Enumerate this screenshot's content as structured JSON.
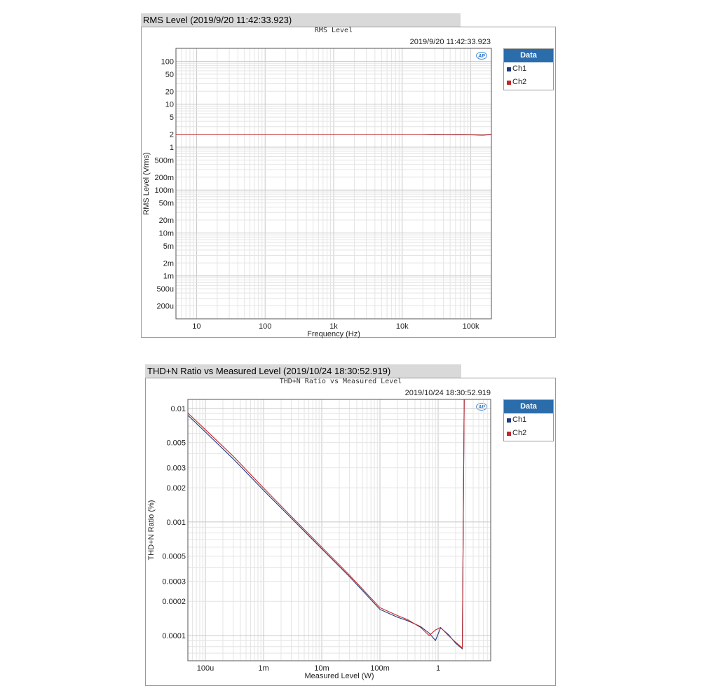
{
  "panels": [
    {
      "id": "rms",
      "window_title": "RMS Level (2019/9/20 11:42:33.923)",
      "chart_title": "RMS Level",
      "timestamp": "2019/9/20 11:42:33.923",
      "logo": "AP",
      "legend": {
        "header": "Data",
        "items": [
          {
            "label": "Ch1",
            "color": "#1f3a7a"
          },
          {
            "label": "Ch2",
            "color": "#c0282d"
          }
        ]
      }
    },
    {
      "id": "thd",
      "window_title": "THD+N Ratio vs Measured Level (2019/10/24 18:30:52.919)",
      "chart_title": "THD+N Ratio vs Measured Level",
      "timestamp": "2019/10/24 18:30:52.919",
      "logo": "AP",
      "legend": {
        "header": "Data",
        "items": [
          {
            "label": "Ch1",
            "color": "#1f3a7a"
          },
          {
            "label": "Ch2",
            "color": "#c0282d"
          }
        ]
      }
    }
  ],
  "chart_data": [
    {
      "type": "line",
      "title": "RMS Level",
      "xlabel": "Frequency (Hz)",
      "ylabel": "RMS Level (Vrms)",
      "xscale": "log",
      "yscale": "log",
      "xlim": [
        5,
        200000
      ],
      "ylim": [
        0.0001,
        200
      ],
      "grid": true,
      "legend_position": "right",
      "x_ticks": [
        {
          "v": 10,
          "label": "10"
        },
        {
          "v": 100,
          "label": "100"
        },
        {
          "v": 1000,
          "label": "1k"
        },
        {
          "v": 10000,
          "label": "10k"
        },
        {
          "v": 100000,
          "label": "100k"
        }
      ],
      "y_ticks": [
        {
          "v": 100,
          "label": "100"
        },
        {
          "v": 50,
          "label": "50"
        },
        {
          "v": 20,
          "label": "20"
        },
        {
          "v": 10,
          "label": "10"
        },
        {
          "v": 5,
          "label": "5"
        },
        {
          "v": 2,
          "label": "2"
        },
        {
          "v": 1,
          "label": "1"
        },
        {
          "v": 0.5,
          "label": "500m"
        },
        {
          "v": 0.2,
          "label": "200m"
        },
        {
          "v": 0.1,
          "label": "100m"
        },
        {
          "v": 0.05,
          "label": "50m"
        },
        {
          "v": 0.02,
          "label": "20m"
        },
        {
          "v": 0.01,
          "label": "10m"
        },
        {
          "v": 0.005,
          "label": "5m"
        },
        {
          "v": 0.002,
          "label": "2m"
        },
        {
          "v": 0.001,
          "label": "1m"
        },
        {
          "v": 0.0005,
          "label": "500u"
        },
        {
          "v": 0.0002,
          "label": "200u"
        }
      ],
      "series": [
        {
          "name": "Ch1",
          "color": "#1f3a7a",
          "x": [
            5,
            10,
            20,
            50,
            100,
            200,
            500,
            1000,
            2000,
            5000,
            10000,
            20000,
            30000,
            50000,
            100000,
            150000,
            200000
          ],
          "y": [
            2,
            2,
            2,
            2,
            2,
            2,
            2,
            2,
            2,
            2,
            2,
            2,
            1.98,
            1.95,
            1.93,
            1.9,
            1.96
          ]
        },
        {
          "name": "Ch2",
          "color": "#c0282d",
          "x": [
            5,
            10,
            20,
            50,
            100,
            200,
            500,
            1000,
            2000,
            5000,
            10000,
            20000,
            30000,
            50000,
            100000,
            150000,
            200000
          ],
          "y": [
            2,
            2,
            2,
            2,
            2,
            2,
            2,
            2,
            2,
            2,
            2,
            2,
            1.99,
            1.96,
            1.94,
            1.91,
            1.97
          ]
        }
      ]
    },
    {
      "type": "line",
      "title": "THD+N Ratio vs Measured Level",
      "xlabel": "Measured Level (W)",
      "ylabel": "THD+N Ratio (%)",
      "xscale": "log",
      "yscale": "log",
      "xlim": [
        5e-05,
        8
      ],
      "ylim": [
        6e-05,
        0.012
      ],
      "grid": true,
      "legend_position": "right",
      "x_ticks": [
        {
          "v": 0.0001,
          "label": "100u"
        },
        {
          "v": 0.001,
          "label": "1m"
        },
        {
          "v": 0.01,
          "label": "10m"
        },
        {
          "v": 0.1,
          "label": "100m"
        },
        {
          "v": 1,
          "label": "1"
        }
      ],
      "y_ticks": [
        {
          "v": 0.01,
          "label": "0.01"
        },
        {
          "v": 0.005,
          "label": "0.005"
        },
        {
          "v": 0.003,
          "label": "0.003"
        },
        {
          "v": 0.002,
          "label": "0.002"
        },
        {
          "v": 0.001,
          "label": "0.001"
        },
        {
          "v": 0.0005,
          "label": "0.0005"
        },
        {
          "v": 0.0003,
          "label": "0.0003"
        },
        {
          "v": 0.0002,
          "label": "0.0002"
        },
        {
          "v": 0.0001,
          "label": "0.0001"
        }
      ],
      "series": [
        {
          "name": "Ch1",
          "color": "#1f3a7a",
          "x": [
            5e-05,
            0.0001,
            0.0003,
            0.001,
            0.003,
            0.01,
            0.03,
            0.1,
            0.2,
            0.3,
            0.5,
            0.7,
            0.9,
            1.1,
            1.5,
            2.0,
            2.4,
            2.6,
            2.8,
            3.5
          ],
          "y": [
            0.0087,
            0.0062,
            0.0036,
            0.0019,
            0.00108,
            0.00058,
            0.00033,
            0.00017,
            0.000145,
            0.000135,
            0.00012,
            0.000105,
            9.05e-05,
            0.000117,
            0.000102,
            8.56e-05,
            7.9e-05,
            7.65e-05,
            0.012,
            0.012
          ]
        },
        {
          "name": "Ch2",
          "color": "#c0282d",
          "x": [
            5e-05,
            0.0001,
            0.0003,
            0.001,
            0.003,
            0.01,
            0.03,
            0.1,
            0.2,
            0.3,
            0.5,
            0.7,
            0.9,
            1.1,
            1.5,
            2.0,
            2.4,
            2.6,
            2.8,
            3.5
          ],
          "y": [
            0.0091,
            0.0065,
            0.0038,
            0.00199,
            0.00112,
            0.0006,
            0.00034,
            0.000176,
            0.00015,
            0.000138,
            0.000118,
            0.0001,
            0.000112,
            0.000118,
            0.0001,
            8.73e-05,
            8.05e-05,
            7.78e-05,
            0.012,
            0.012
          ]
        }
      ]
    }
  ]
}
